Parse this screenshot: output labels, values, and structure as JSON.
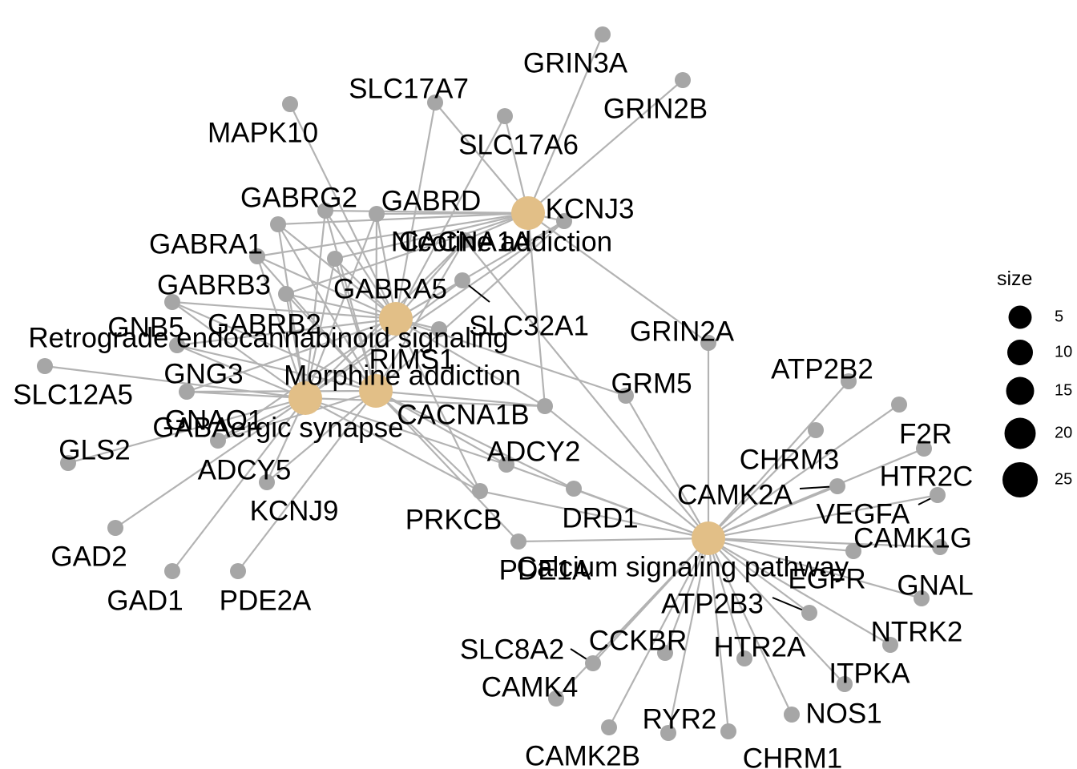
{
  "colors": {
    "category_node": "#e2bf87",
    "gene_node": "#a6a6a6",
    "edge": "#b3b3b3",
    "text": "#000000",
    "legend_dot": "#000000"
  },
  "categories": [
    {
      "id": "nicotine",
      "name": "Nicotine addiction"
    },
    {
      "id": "retro",
      "name": "Retrograde endocannabinoid signaling"
    },
    {
      "id": "morphine",
      "name": "Morphine addiction"
    },
    {
      "id": "gaba",
      "name": "GABAergic synapse"
    },
    {
      "id": "calcium",
      "name": "Calcium signaling pathway"
    }
  ],
  "genes": [
    "GRIN3A",
    "GRIN2B",
    "SLC17A7",
    "SLC17A6",
    "MAPK10",
    "GABRG2",
    "GABRD",
    "KCNJ3",
    "CACNA1A",
    "GABRA1",
    "GABRB3",
    "GABRA5",
    "SLC32A1",
    "GNB5",
    "GABRB2",
    "RIMS1",
    "GRIN2A",
    "SLC12A5",
    "GNG3",
    "GNAO1",
    "CACNA1B",
    "GLS2",
    "ADCY5",
    "ADCY2",
    "KCNJ9",
    "PRKCB",
    "DRD1",
    "GAD2",
    "GAD1",
    "PDE2A",
    "PDE1A",
    "GRM5",
    "ATP2B2",
    "CHRM3",
    "F2R",
    "HTR2C",
    "CAMK2A",
    "VEGFA",
    "CAMK1G",
    "EGFR",
    "GNAL",
    "ATP2B3",
    "NTRK2",
    "CCKBR",
    "SLC8A2",
    "HTR2A",
    "ITPKA",
    "CAMK4",
    "NOS1",
    "RYR2",
    "CAMK2B",
    "CHRM1"
  ],
  "legend": {
    "title": "size",
    "items": [
      {
        "label": "5",
        "value": 5
      },
      {
        "label": "10",
        "value": 10
      },
      {
        "label": "15",
        "value": 15
      },
      {
        "label": "20",
        "value": 20
      },
      {
        "label": "25",
        "value": 25
      }
    ]
  }
}
